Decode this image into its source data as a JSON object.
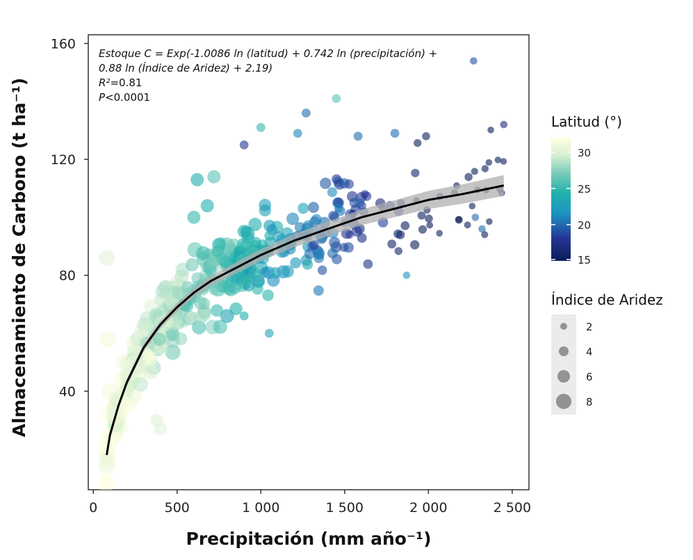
{
  "chart_data": {
    "type": "scatter",
    "title": "",
    "xlabel": "Precipitación (mm año⁻¹)",
    "ylabel": "Almacenamiento de Carbono (t ha⁻¹)",
    "xlim": [
      -30,
      2600
    ],
    "ylim": [
      6,
      163
    ],
    "x_ticks": [
      0,
      500,
      1000,
      1500,
      2000,
      2500
    ],
    "x_tick_labels": [
      "0",
      "500",
      "1 000",
      "1 500",
      "2 000",
      "2 500"
    ],
    "y_ticks": [
      40,
      80,
      120,
      160
    ],
    "y_tick_labels": [
      "40",
      "80",
      "120",
      "160"
    ],
    "grid": false,
    "annotation": {
      "line1": "Estoque C = Exp(-1.0086 ln (latitud) + 0.742 ln (precipitación) +",
      "line2": "0.88 ln (Índice de Aridez) + 2.19)",
      "r2_label": "R²",
      "r2_value": "=0.81",
      "p_label": "P",
      "p_value": "<0.0001"
    },
    "fit_curve": {
      "x": [
        80,
        100,
        150,
        200,
        250,
        300,
        350,
        400,
        450,
        500,
        600,
        700,
        800,
        900,
        1000,
        1200,
        1400,
        1600,
        1800,
        2000,
        2200,
        2450
      ],
      "y": [
        18,
        25,
        35,
        43,
        49,
        55,
        59,
        63,
        66,
        69,
        74,
        78,
        81,
        84,
        87,
        92,
        96,
        100,
        103,
        106,
        108,
        111
      ]
    },
    "color_legend": {
      "title": "Latitud (°)",
      "ticks": [
        15,
        20,
        25,
        30
      ],
      "range": [
        15,
        32
      ]
    },
    "size_legend": {
      "title": "Índice de Aridez",
      "values": [
        2,
        4,
        6,
        8
      ]
    },
    "points_highlight": [
      {
        "x": 80,
        "y": 86,
        "lat": 30,
        "ia": 8
      },
      {
        "x": 620,
        "y": 113,
        "lat": 24,
        "ia": 6
      },
      {
        "x": 680,
        "y": 104,
        "lat": 24,
        "ia": 6
      },
      {
        "x": 720,
        "y": 114,
        "lat": 26,
        "ia": 6
      },
      {
        "x": 600,
        "y": 100,
        "lat": 25,
        "ia": 6
      },
      {
        "x": 1450,
        "y": 141,
        "lat": 26,
        "ia": 3
      },
      {
        "x": 1270,
        "y": 136,
        "lat": 20,
        "ia": 3
      },
      {
        "x": 2270,
        "y": 154,
        "lat": 19,
        "ia": 2
      },
      {
        "x": 2450,
        "y": 132,
        "lat": 17,
        "ia": 2
      },
      {
        "x": 1000,
        "y": 131,
        "lat": 25,
        "ia": 3
      },
      {
        "x": 1220,
        "y": 129,
        "lat": 21,
        "ia": 3
      },
      {
        "x": 1580,
        "y": 128,
        "lat": 20,
        "ia": 3
      },
      {
        "x": 1800,
        "y": 129,
        "lat": 20,
        "ia": 3
      },
      {
        "x": 1870,
        "y": 80,
        "lat": 22,
        "ia": 2
      },
      {
        "x": 2320,
        "y": 96,
        "lat": 20,
        "ia": 2
      },
      {
        "x": 2280,
        "y": 100,
        "lat": 20,
        "ia": 2
      },
      {
        "x": 900,
        "y": 125,
        "lat": 18,
        "ia": 3
      },
      {
        "x": 1050,
        "y": 60,
        "lat": 23,
        "ia": 3
      },
      {
        "x": 900,
        "y": 66,
        "lat": 24,
        "ia": 3
      },
      {
        "x": 400,
        "y": 27,
        "lat": 30,
        "ia": 6
      },
      {
        "x": 380,
        "y": 30,
        "lat": 30,
        "ia": 6
      },
      {
        "x": 90,
        "y": 58,
        "lat": 31,
        "ia": 8
      },
      {
        "x": 100,
        "y": 40,
        "lat": 31,
        "ia": 8
      },
      {
        "x": 120,
        "y": 32,
        "lat": 30,
        "ia": 7
      }
    ]
  }
}
